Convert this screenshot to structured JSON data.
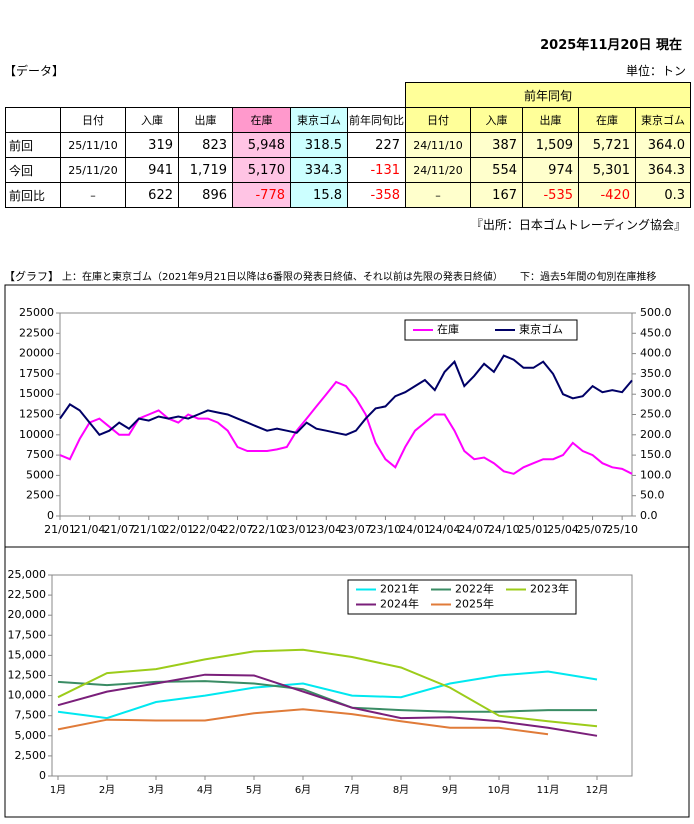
{
  "header": {
    "date": "2025年11月20日 現在",
    "section": "【データ】",
    "unit": "単位：トン"
  },
  "table": {
    "group_header": "前年同旬",
    "headers": [
      "日付",
      "入庫",
      "出庫",
      "在庫",
      "東京ゴム",
      "前年同旬比",
      "日付",
      "入庫",
      "出庫",
      "在庫",
      "東京ゴム"
    ],
    "rows": [
      {
        "label": "前回",
        "cells": [
          "25/11/10",
          "319",
          "823",
          "5,948",
          "318.5",
          "227",
          "24/11/10",
          "387",
          "1,509",
          "5,721",
          "364.0"
        ]
      },
      {
        "label": "今回",
        "cells": [
          "25/11/20",
          "941",
          "1,719",
          "5,170",
          "334.3",
          "-131",
          "24/11/20",
          "554",
          "974",
          "5,301",
          "364.3"
        ]
      },
      {
        "label": "前回比",
        "cells": [
          "–",
          "622",
          "896",
          "-778",
          "15.8",
          "-358",
          "–",
          "167",
          "-535",
          "-420",
          "0.3"
        ]
      }
    ]
  },
  "source": "『出所：日本ゴムトレーディング協会』",
  "graph": {
    "section": "【グラフ】",
    "note_top": "上：在庫と東京ゴム（2021年9月21日以降は6番限の発表日終値、それ以前は先限の発表日終値）",
    "note_bottom": "下：過去5年間の旬別在庫推移"
  },
  "chart_data": [
    {
      "type": "line",
      "legend": "top-right",
      "categories": [
        "21/01",
        null,
        null,
        "21/04",
        null,
        null,
        "21/07",
        null,
        null,
        "21/10",
        null,
        null,
        "22/01",
        null,
        null,
        "22/04",
        null,
        null,
        "22/07",
        null,
        null,
        "22/10",
        null,
        null,
        "23/01",
        null,
        null,
        "23/04",
        null,
        null,
        "23/07",
        null,
        null,
        "23/10",
        null,
        null,
        "24/01",
        null,
        null,
        "24/04",
        null,
        null,
        "24/07",
        null,
        null,
        "24/10",
        null,
        null,
        "25/01",
        null,
        null,
        "25/04",
        null,
        null,
        "25/07",
        null,
        null,
        "25/10",
        null
      ],
      "series": [
        {
          "name": "在庫",
          "color": "#ff00ff",
          "values": [
            7500,
            7000,
            9500,
            11500,
            12000,
            11000,
            10000,
            10000,
            12000,
            12500,
            13000,
            12000,
            11500,
            12500,
            12000,
            12000,
            11500,
            10500,
            8500,
            8000,
            8000,
            8000,
            8200,
            8500,
            10500,
            12000,
            13500,
            15000,
            16500,
            16000,
            14500,
            12500,
            9000,
            7000,
            6000,
            8500,
            10500,
            11500,
            12500,
            12500,
            10500,
            8000,
            7000,
            7200,
            6500,
            5500,
            5200,
            6000,
            6500,
            7000,
            7000,
            7500,
            9000,
            8000,
            7500,
            6500,
            6000,
            5800,
            5200
          ]
        },
        {
          "name": "東京ゴム",
          "color": "#000066",
          "axis": "y2",
          "values": [
            240,
            275,
            260,
            230,
            200,
            210,
            230,
            215,
            240,
            235,
            245,
            240,
            245,
            240,
            250,
            260,
            255,
            250,
            240,
            230,
            220,
            210,
            215,
            210,
            205,
            230,
            215,
            210,
            205,
            200,
            210,
            240,
            265,
            270,
            295,
            305,
            320,
            335,
            310,
            355,
            380,
            320,
            345,
            375,
            355,
            395,
            385,
            365,
            365,
            380,
            350,
            300,
            290,
            295,
            320,
            305,
            310,
            305,
            334
          ]
        }
      ],
      "ylim": [
        0,
        25000
      ],
      "yticks": [
        0,
        2500,
        5000,
        7500,
        10000,
        12500,
        15000,
        17500,
        20000,
        22500,
        25000
      ],
      "y2lim": [
        0,
        500
      ],
      "y2ticks": [
        {
          "value": 0,
          "label": "0.0"
        },
        {
          "value": 50,
          "label": "50.0"
        },
        {
          "value": 100,
          "label": "100.0"
        },
        {
          "value": 150,
          "label": "150.0"
        },
        {
          "value": 200,
          "label": "200.0"
        },
        {
          "value": 250,
          "label": "250.0"
        },
        {
          "value": 300,
          "label": "300.0"
        },
        {
          "value": 350,
          "label": "350.0"
        },
        {
          "value": 400,
          "label": "400.0"
        },
        {
          "value": 450,
          "label": "450.0"
        },
        {
          "value": 500,
          "label": "500.0"
        }
      ]
    },
    {
      "type": "line",
      "legend": "top-right",
      "categories": [
        "1月",
        "2月",
        "3月",
        "4月",
        "5月",
        "6月",
        "7月",
        "8月",
        "9月",
        "10月",
        "11月",
        "12月"
      ],
      "series": [
        {
          "name": "2021年",
          "color": "#00e8f0",
          "values": [
            8000,
            7200,
            9200,
            10000,
            11000,
            11500,
            10000,
            9800,
            11500,
            12500,
            13000,
            12000
          ]
        },
        {
          "name": "2022年",
          "color": "#3a8c64",
          "values": [
            11700,
            11300,
            11700,
            11800,
            11500,
            10800,
            8500,
            8200,
            8000,
            8000,
            8200,
            8200
          ]
        },
        {
          "name": "2023年",
          "color": "#9ccc1a",
          "values": [
            9800,
            12800,
            13300,
            14500,
            15500,
            15700,
            14800,
            13500,
            11000,
            7500,
            6800,
            6200
          ]
        },
        {
          "name": "2024年",
          "color": "#7a1f7a",
          "values": [
            8800,
            10500,
            11500,
            12600,
            12500,
            10500,
            8500,
            7200,
            7300,
            6800,
            6000,
            5000
          ]
        },
        {
          "name": "2025年",
          "color": "#e07b39",
          "values": [
            5800,
            7000,
            6900,
            6900,
            7800,
            8300,
            7700,
            6800,
            6000,
            6000,
            5200,
            null
          ]
        }
      ],
      "ylim": [
        0,
        25000
      ],
      "yticks": [
        0,
        {
          "value": 2500,
          "label": "2,500"
        },
        {
          "value": 5000,
          "label": "5,000"
        },
        {
          "value": 7500,
          "label": "7,500"
        },
        {
          "value": 10000,
          "label": "10,000"
        },
        {
          "value": 12500,
          "label": "12,500"
        },
        {
          "value": 15000,
          "label": "15,000"
        },
        {
          "value": 17500,
          "label": "17,500"
        },
        {
          "value": 20000,
          "label": "20,000"
        },
        {
          "value": 22500,
          "label": "22,500"
        },
        {
          "value": 25000,
          "label": "25,000"
        }
      ]
    }
  ]
}
